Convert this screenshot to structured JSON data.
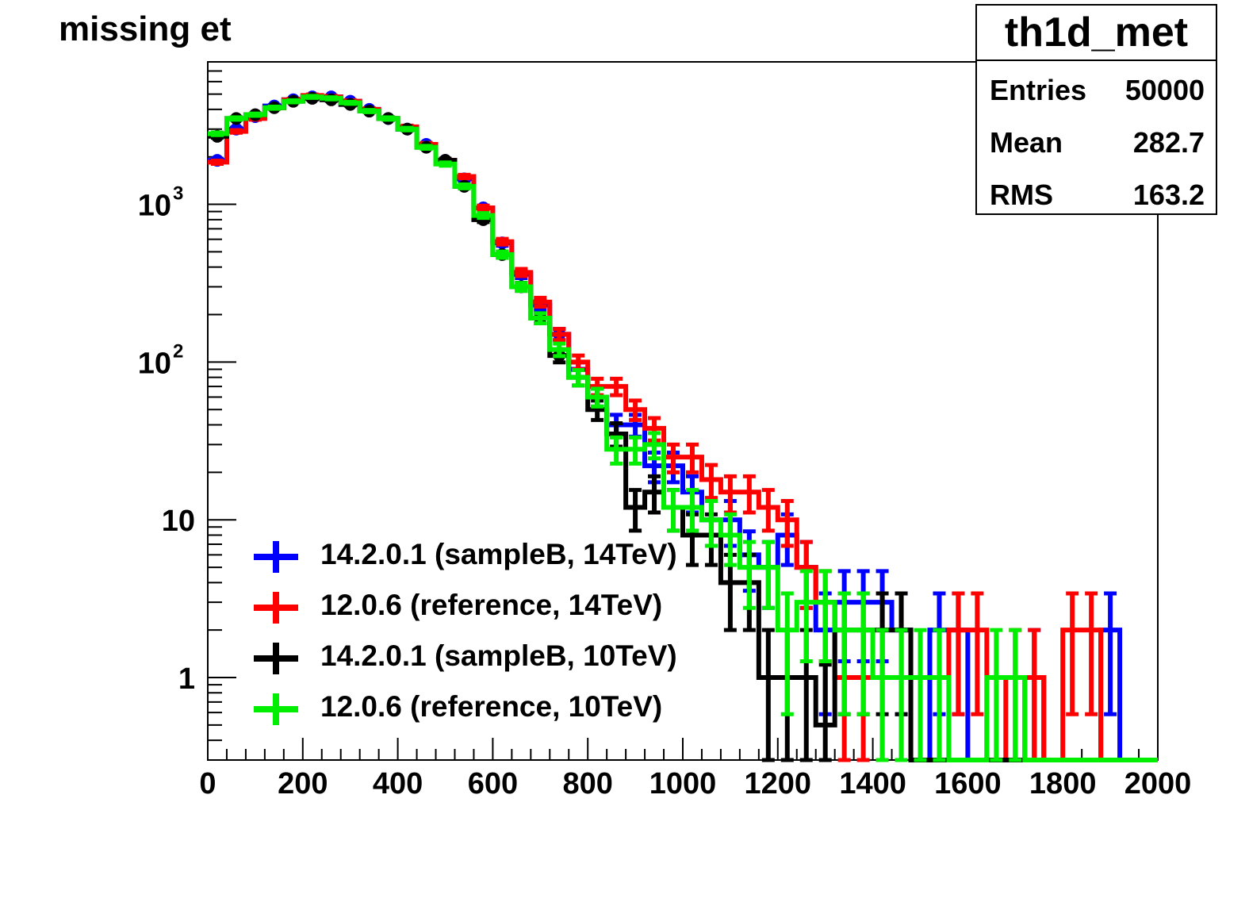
{
  "title": "missing et",
  "stats": {
    "name": "th1d_met",
    "rows": [
      {
        "label": "Entries",
        "value": "50000"
      },
      {
        "label": "Mean",
        "value": "282.7"
      },
      {
        "label": "RMS",
        "value": "163.2"
      }
    ]
  },
  "legend": [
    {
      "label": "14.2.0.1 (sampleB, 14TeV)",
      "color": "#0000ff"
    },
    {
      "label": "12.0.6 (reference, 14TeV)",
      "color": "#ff0000"
    },
    {
      "label": "14.2.0.1 (sampleB, 10TeV)",
      "color": "#000000"
    },
    {
      "label": "12.0.6 (reference, 10TeV)",
      "color": "#00ee00"
    }
  ],
  "chart_data": {
    "type": "histogram",
    "xlim": [
      0,
      2000
    ],
    "ylim_log": [
      0.3,
      8000
    ],
    "yscale": "log",
    "x_ticks": [
      0,
      200,
      400,
      600,
      800,
      1000,
      1200,
      1400,
      1600,
      1800,
      2000
    ],
    "y_ticks": [
      {
        "value": 1,
        "base": "1",
        "exp": ""
      },
      {
        "value": 10,
        "base": "10",
        "exp": ""
      },
      {
        "value": 100,
        "base": "10",
        "exp": "2"
      },
      {
        "value": 1000,
        "base": "10",
        "exp": "3"
      }
    ],
    "bin_width": 40,
    "series": [
      {
        "name": "14.2.0.1 (sampleB, 14TeV)",
        "color": "#0000ff",
        "style": "error",
        "values": [
          1900,
          3000,
          3600,
          4200,
          4600,
          4800,
          4800,
          4500,
          4000,
          3500,
          3000,
          2400,
          1900,
          1450,
          950,
          570,
          360,
          230,
          150,
          90,
          60,
          40,
          40,
          22,
          22,
          15,
          10,
          10,
          6,
          5,
          8,
          5,
          2,
          3,
          3,
          3,
          2,
          0,
          2,
          2,
          0,
          0,
          0,
          1,
          0,
          0,
          0,
          2,
          0,
          0
        ]
      },
      {
        "name": "12.0.6 (reference, 14TeV)",
        "color": "#ff0000",
        "style": "step",
        "values": [
          1850,
          2900,
          3500,
          4100,
          4600,
          4900,
          4800,
          4500,
          4000,
          3500,
          3100,
          2400,
          1900,
          1500,
          950,
          580,
          370,
          240,
          150,
          100,
          70,
          70,
          50,
          38,
          25,
          25,
          18,
          15,
          15,
          12,
          10,
          5,
          3,
          1,
          1,
          1,
          1,
          0,
          0,
          2,
          2,
          0,
          1,
          1,
          0,
          2,
          2,
          0,
          0,
          0
        ]
      },
      {
        "name": "14.2.0.1 (sampleB, 10TeV)",
        "color": "#000000",
        "style": "error",
        "values": [
          2700,
          3500,
          3700,
          4100,
          4500,
          4700,
          4600,
          4300,
          3900,
          3500,
          3000,
          2300,
          1900,
          1300,
          800,
          480,
          300,
          190,
          110,
          80,
          50,
          35,
          12,
          15,
          12,
          8,
          8,
          4,
          4,
          1,
          1,
          1,
          0.5,
          2,
          2,
          2,
          2,
          0,
          0,
          0,
          0,
          0,
          0,
          0,
          0,
          0,
          0,
          0,
          0,
          0
        ]
      },
      {
        "name": "12.0.6 (reference, 10TeV)",
        "color": "#00ee00",
        "style": "step",
        "values": [
          2800,
          3500,
          3700,
          4100,
          4500,
          4800,
          4700,
          4400,
          3900,
          3500,
          3000,
          2300,
          1800,
          1300,
          850,
          480,
          300,
          190,
          120,
          80,
          60,
          28,
          28,
          30,
          12,
          12,
          10,
          8,
          5,
          5,
          2,
          3,
          3,
          2,
          2,
          1,
          1,
          1,
          1,
          0,
          0,
          1,
          1,
          0,
          0,
          0,
          0,
          0,
          0,
          0
        ]
      }
    ]
  }
}
